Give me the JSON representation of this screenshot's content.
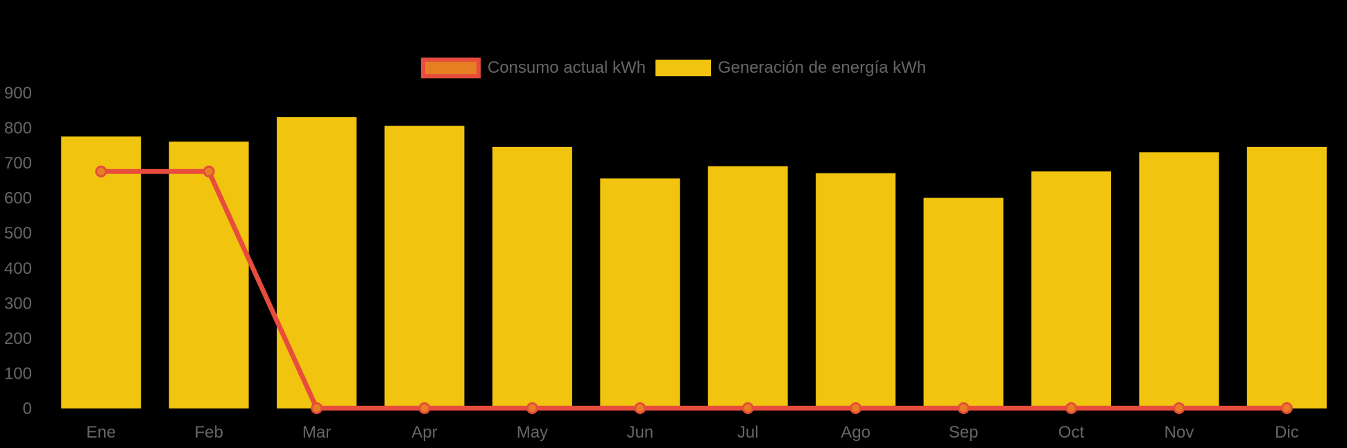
{
  "chart_data": {
    "type": "bar",
    "subtype": "bar-with-line-overlay",
    "title": "",
    "categories": [
      "Ene",
      "Feb",
      "Mar",
      "Apr",
      "May",
      "Jun",
      "Jul",
      "Ago",
      "Sep",
      "Oct",
      "Nov",
      "Dic"
    ],
    "series": [
      {
        "name": "Consumo actual kWh",
        "type": "line",
        "values": [
          675,
          675,
          0,
          0,
          0,
          0,
          0,
          0,
          0,
          0,
          0,
          0
        ],
        "line_color": "#e74c3c",
        "point_fill": "#e67e22"
      },
      {
        "name": "Generación de energía kWh",
        "type": "bar",
        "values": [
          775,
          760,
          830,
          805,
          745,
          655,
          690,
          670,
          600,
          675,
          730,
          745
        ],
        "color": "#f1c40f"
      }
    ],
    "xlabel": "",
    "ylabel": "",
    "ylim": [
      0,
      900
    ],
    "yticks": [
      0,
      100,
      200,
      300,
      400,
      500,
      600,
      700,
      800,
      900
    ],
    "grid": false,
    "legend_position": "top-center",
    "axis_text_color": "#666666",
    "background": "#000000"
  }
}
